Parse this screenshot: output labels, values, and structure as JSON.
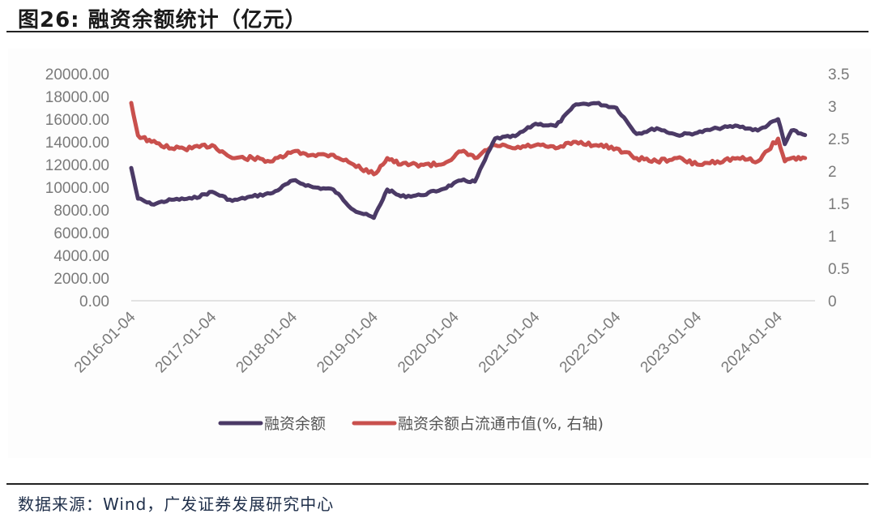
{
  "header": {
    "title": "图26:  融资余额统计（亿元）"
  },
  "footer": {
    "source": "数据来源：Wind，广发证券发展研究中心"
  },
  "colors": {
    "series_margin_balance": "#4b3a66",
    "series_ratio": "#c9504d",
    "axis_text": "#7a7a7a",
    "axis_line": "#d9d9d9"
  },
  "chart_data": {
    "type": "line",
    "title": "融资余额统计（亿元）",
    "xlabel": "",
    "ylabel": "",
    "y2label": "融资余额占流通市值(%)",
    "ylim": [
      0,
      20000
    ],
    "y2lim": [
      0,
      3.5
    ],
    "grid": false,
    "legend_position": "bottom",
    "x_tick_labels": [
      "2016-01-04",
      "2017-01-04",
      "2018-01-04",
      "2019-01-04",
      "2020-01-04",
      "2021-01-04",
      "2022-01-04",
      "2023-01-04",
      "2024-01-04"
    ],
    "y_tick_labels": [
      "0.00",
      "2000.00",
      "4000.00",
      "6000.00",
      "8000.00",
      "10000.00",
      "12000.00",
      "14000.00",
      "16000.00",
      "18000.00",
      "20000.00"
    ],
    "y2_tick_labels": [
      "0",
      "0.5",
      "1",
      "1.5",
      "2",
      "2.5",
      "3",
      "3.5"
    ],
    "x": [
      "2016-01",
      "2016-02",
      "2016-04",
      "2016-07",
      "2016-10",
      "2017-01",
      "2017-04",
      "2017-07",
      "2017-10",
      "2018-01",
      "2018-04",
      "2018-07",
      "2018-10",
      "2019-01",
      "2019-03",
      "2019-05",
      "2019-08",
      "2019-11",
      "2020-02",
      "2020-04",
      "2020-07",
      "2020-10",
      "2021-01",
      "2021-04",
      "2021-07",
      "2021-10",
      "2022-01",
      "2022-04",
      "2022-07",
      "2022-10",
      "2023-01",
      "2023-04",
      "2023-07",
      "2023-10",
      "2024-01",
      "2024-02",
      "2024-03",
      "2024-05"
    ],
    "series": [
      {
        "name": "融资余额",
        "axis": "left",
        "values": [
          11700,
          9000,
          8500,
          8900,
          9000,
          9600,
          8800,
          9200,
          9500,
          10600,
          10000,
          9800,
          8000,
          7300,
          9800,
          9200,
          9300,
          9800,
          10600,
          10500,
          14300,
          14500,
          15600,
          15400,
          17300,
          17400,
          17000,
          14700,
          15200,
          14600,
          14800,
          15200,
          15400,
          15000,
          16000,
          13800,
          15000,
          14600
        ]
      },
      {
        "name": "融资余额占流通市值(%, 右轴)",
        "axis": "right",
        "values": [
          3.05,
          2.55,
          2.45,
          2.35,
          2.35,
          2.4,
          2.2,
          2.2,
          2.15,
          2.3,
          2.25,
          2.25,
          2.1,
          1.95,
          2.2,
          2.1,
          2.1,
          2.1,
          2.3,
          2.2,
          2.4,
          2.35,
          2.4,
          2.35,
          2.45,
          2.4,
          2.35,
          2.2,
          2.15,
          2.2,
          2.1,
          2.15,
          2.2,
          2.15,
          2.5,
          2.15,
          2.2,
          2.2
        ]
      }
    ]
  },
  "legend": {
    "items": [
      {
        "label": "融资余额",
        "color": "#4b3a66"
      },
      {
        "label": "融资余额占流通市值(%, 右轴)",
        "color": "#c9504d"
      }
    ]
  }
}
